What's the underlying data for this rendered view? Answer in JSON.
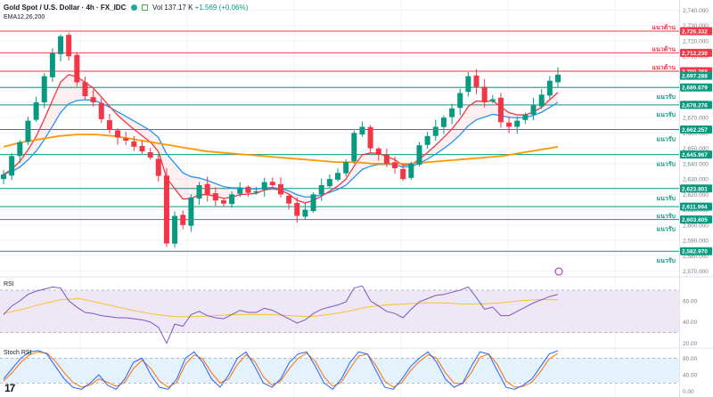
{
  "header": {
    "symbol": "Gold Spot / U.S. Dollar · 4h · FX_IDC",
    "volume": "Vol 137.17 K",
    "change": "+1.569 (+0.06%)",
    "ema_label": "EMA12,26,200"
  },
  "panes": {
    "rsi_label": "RSI",
    "stoch_label": "Stoch RSI"
  },
  "logo": "17",
  "colors": {
    "up": "#089981",
    "down": "#f23645",
    "ema12": "#f23645",
    "ema26": "#2196f3",
    "ema200": "#ff9800",
    "resistance": "#f23645",
    "support": "#089981",
    "rsi": "#7e57c2",
    "rsi_ma": "#fbc02d",
    "stoch_k": "#2962ff",
    "stoch_d": "#ff6d00",
    "band": "#ede7f6",
    "stoch_band": "#e3f2fd",
    "grid": "#f0f3fa"
  },
  "chart_data": {
    "type": "candlestick",
    "price_axis": {
      "ylim": [
        2568,
        2742
      ],
      "ticks": [
        "2,740.000",
        "2,730.000",
        "2,720.000",
        "2,710.000",
        "2,700.000",
        "2,690.000",
        "2,680.000",
        "2,670.000",
        "2,660.000",
        "2,650.000",
        "2,640.000",
        "2,630.000",
        "2,620.000",
        "2,610.000",
        "2,600.000",
        "2,590.000",
        "2,580.000",
        "2,570.000"
      ]
    },
    "levels": [
      {
        "kind": "resistance",
        "price": 2726.332,
        "label": "2,726.332",
        "name": "แนวต้าน"
      },
      {
        "kind": "resistance",
        "price": 2712.23,
        "label": "2,712.230",
        "name": "แนวต้าน"
      },
      {
        "kind": "resistance",
        "price": 2700.268,
        "label": "2,700.268",
        "name": "แนวต้าน"
      },
      {
        "kind": "support",
        "price": 2689.679,
        "label": "2,689.679",
        "name": "แนวรับ"
      },
      {
        "kind": "support",
        "price": 2678.276,
        "label": "2,678.276",
        "name": "แนวรับ"
      },
      {
        "kind": "support",
        "price": 2662.257,
        "label": "2,662.257",
        "name": "แนวรับ"
      },
      {
        "kind": "support",
        "price": 2645.967,
        "label": "2,645.967",
        "name": "แนวรับ"
      },
      {
        "kind": "support",
        "price": 2623.801,
        "label": "2,623.801",
        "name": "แนวรับ"
      },
      {
        "kind": "support",
        "price": 2611.994,
        "label": "2,611.994",
        "name": "แนวรับ"
      },
      {
        "kind": "support",
        "price": 2603.605,
        "label": "2,603.605",
        "name": "แนวรับ"
      },
      {
        "kind": "support",
        "price": 2582.97,
        "label": "2,582.970",
        "name": "แนวรับ"
      }
    ],
    "current_price": {
      "price": 2697.288,
      "label": "2,697.288"
    },
    "close_path": [
      2633,
      2645,
      2654,
      2668,
      2680,
      2697,
      2712,
      2723,
      2710,
      2693,
      2684,
      2680,
      2669,
      2662,
      2657,
      2655,
      2651,
      2648,
      2644,
      2632,
      2588,
      2606,
      2600,
      2618,
      2626,
      2620,
      2616,
      2614,
      2620,
      2624,
      2621,
      2622,
      2628,
      2626,
      2620,
      2614,
      2606,
      2610,
      2620,
      2626,
      2630,
      2634,
      2641,
      2660,
      2664,
      2650,
      2646,
      2640,
      2637,
      2630,
      2640,
      2652,
      2658,
      2664,
      2670,
      2676,
      2686,
      2697,
      2690,
      2680,
      2682,
      2667,
      2664,
      2668,
      2672,
      2678,
      2685,
      2694,
      2698
    ],
    "ema200_path": [
      2651,
      2654,
      2656,
      2658,
      2659,
      2659,
      2658,
      2656,
      2654,
      2652,
      2650,
      2648,
      2647,
      2646,
      2645,
      2644,
      2643,
      2642,
      2641,
      2641,
      2640,
      2640,
      2640,
      2641,
      2642,
      2643,
      2644,
      2645,
      2647,
      2649,
      2651
    ],
    "rsi_axis": {
      "ylim": [
        18,
        80
      ],
      "ticks": [
        "60.00",
        "40.00",
        "20.00"
      ],
      "band": [
        30,
        70
      ]
    },
    "rsi_path": [
      47,
      55,
      60,
      66,
      69,
      71,
      73,
      72,
      60,
      54,
      49,
      48,
      46,
      45,
      44,
      44,
      43,
      42,
      40,
      35,
      20,
      38,
      36,
      47,
      50,
      46,
      44,
      43,
      47,
      51,
      49,
      49,
      53,
      51,
      47,
      43,
      39,
      42,
      48,
      52,
      54,
      56,
      59,
      72,
      74,
      60,
      55,
      50,
      48,
      44,
      52,
      59,
      62,
      65,
      66,
      68,
      70,
      73,
      63,
      52,
      54,
      46,
      46,
      50,
      54,
      58,
      61,
      64,
      66
    ],
    "rsi_ma_path": [
      48,
      52,
      57,
      61,
      62,
      58,
      54,
      50,
      47,
      45,
      45,
      46,
      47,
      47,
      47,
      46,
      45,
      47,
      50,
      54,
      56,
      57,
      58,
      58,
      57,
      57,
      58,
      60,
      61,
      61
    ],
    "stoch_axis": {
      "ylim": [
        -5,
        100
      ],
      "ticks": [
        "80.00",
        "40.00",
        "0.00"
      ],
      "band": [
        20,
        80
      ]
    },
    "stoch_k_path": [
      30,
      55,
      80,
      95,
      98,
      90,
      60,
      30,
      10,
      5,
      20,
      40,
      15,
      5,
      30,
      70,
      80,
      40,
      10,
      5,
      30,
      80,
      95,
      70,
      30,
      10,
      40,
      80,
      95,
      60,
      20,
      10,
      30,
      70,
      90,
      95,
      60,
      20,
      5,
      30,
      70,
      95,
      90,
      50,
      10,
      5,
      30,
      60,
      80,
      95,
      70,
      30,
      10,
      20,
      60,
      95,
      90,
      50,
      10,
      5,
      15,
      30,
      60,
      90,
      98
    ],
    "stoch_d_path": [
      25,
      45,
      70,
      88,
      95,
      92,
      72,
      45,
      22,
      10,
      15,
      30,
      22,
      12,
      22,
      55,
      75,
      55,
      25,
      10,
      22,
      65,
      88,
      78,
      45,
      20,
      30,
      65,
      88,
      72,
      35,
      15,
      25,
      55,
      80,
      92,
      72,
      35,
      12,
      22,
      55,
      85,
      90,
      62,
      25,
      10,
      22,
      50,
      72,
      88,
      80,
      45,
      20,
      18,
      45,
      82,
      90,
      65,
      25,
      10,
      12,
      22,
      48,
      78,
      92
    ]
  }
}
